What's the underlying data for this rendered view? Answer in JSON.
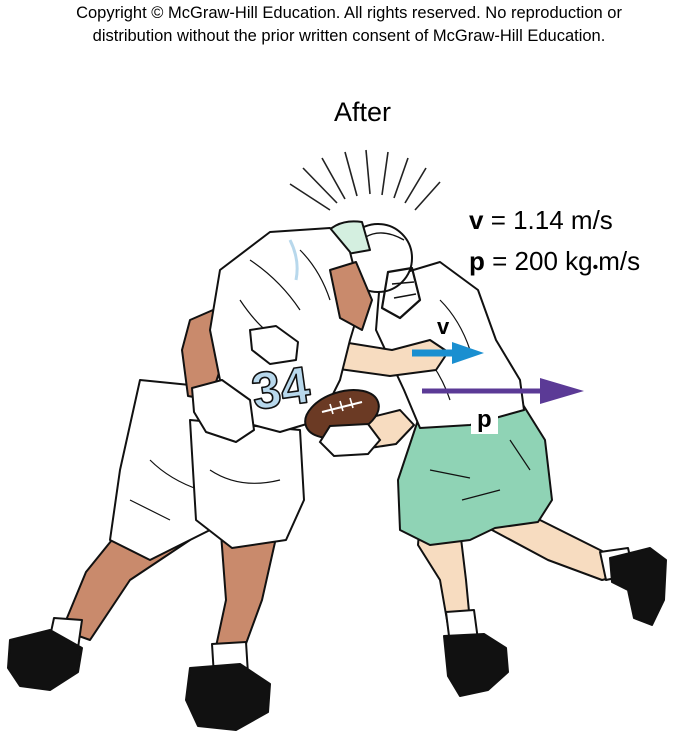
{
  "copyright": {
    "line1": "Copyright © McGraw-Hill Education.  All rights reserved. No reproduction or",
    "line2": "distribution without the prior written consent of McGraw-Hill Education."
  },
  "title": "After",
  "equations": {
    "v_symbol": "v",
    "v_value": " = 1.14 m/s",
    "p_symbol": "p",
    "p_value_prefix": " = 200 kg",
    "p_value_dot": "•",
    "p_value_suffix": "m/s"
  },
  "vectors": {
    "velocity_label": "v",
    "velocity_color": "#1a8fd0",
    "momentum_label": "p",
    "momentum_color": "#5b3a96"
  },
  "colors": {
    "jersey": "#ffffff",
    "jersey_blue": "#b8d8ec",
    "pants_green": "#8fd3b5",
    "skin_dark": "#c98a6c",
    "skin_light": "#f7dcc0",
    "football": "#6b3a24",
    "shoe": "#111111"
  },
  "jersey_number": "34"
}
